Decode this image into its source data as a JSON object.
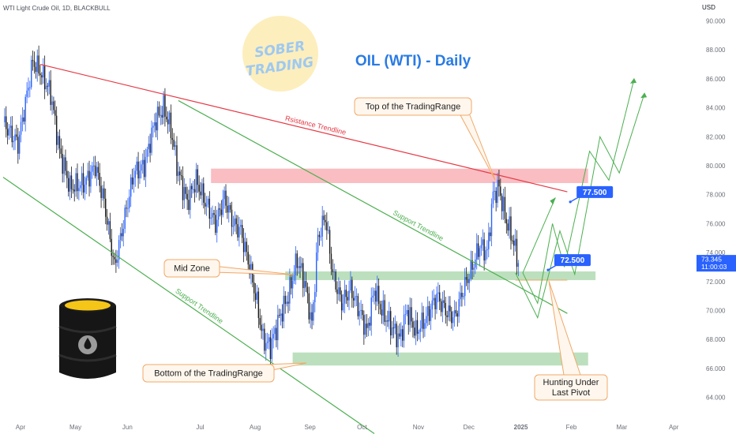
{
  "header": {
    "symbol": "WTI Light Crude Oil, 1D, BLACKBULL",
    "currency": "USD"
  },
  "logo": {
    "line1": "SOBER",
    "line2": "TRADING"
  },
  "colors": {
    "up": "#2962ff",
    "down": "#1a1a1a",
    "resistance": "#e53945",
    "support": "#4caf50",
    "zone_red": "#f7a7ad",
    "zone_green": "#a5d6a7",
    "title": "#2a7be4",
    "callout_border": "#f0a868",
    "label_blue": "#2962ff"
  },
  "chart_data": {
    "type": "candlestick",
    "title": "OIL (WTI) - Daily",
    "x_axis_labels": [
      "Apr",
      "May",
      "Jun",
      "Jul",
      "Aug",
      "Sep",
      "Oct",
      "Nov",
      "Dec",
      "2025",
      "Feb",
      "Mar",
      "Apr"
    ],
    "y_ticks": [
      "90.000",
      "88.000",
      "86.000",
      "84.000",
      "82.000",
      "80.000",
      "78.000",
      "76.000",
      "74.000",
      "72.000",
      "70.000",
      "68.000",
      "66.000",
      "64.000"
    ],
    "ylim": [
      63,
      91
    ],
    "grid": false,
    "last_price": "73.345",
    "countdown": "11:00:03",
    "anchor_points": [
      {
        "t": 0,
        "p": 83.0
      },
      {
        "t": 10,
        "p": 81.5
      },
      {
        "t": 20,
        "p": 87.2
      },
      {
        "t": 25,
        "p": 86.5
      },
      {
        "t": 32,
        "p": 85.0
      },
      {
        "t": 38,
        "p": 81.0
      },
      {
        "t": 45,
        "p": 78.5
      },
      {
        "t": 55,
        "p": 78.8
      },
      {
        "t": 62,
        "p": 80.0
      },
      {
        "t": 68,
        "p": 77.5
      },
      {
        "t": 75,
        "p": 73.0
      },
      {
        "t": 82,
        "p": 76.5
      },
      {
        "t": 88,
        "p": 79.5
      },
      {
        "t": 95,
        "p": 80.0
      },
      {
        "t": 102,
        "p": 83.0
      },
      {
        "t": 108,
        "p": 84.0
      },
      {
        "t": 113,
        "p": 82.5
      },
      {
        "t": 118,
        "p": 79.5
      },
      {
        "t": 124,
        "p": 77.5
      },
      {
        "t": 130,
        "p": 79.0
      },
      {
        "t": 136,
        "p": 77.5
      },
      {
        "t": 143,
        "p": 76.0
      },
      {
        "t": 149,
        "p": 77.8
      },
      {
        "t": 155,
        "p": 76.0
      },
      {
        "t": 160,
        "p": 75.5
      },
      {
        "t": 166,
        "p": 73.0
      },
      {
        "t": 171,
        "p": 70.5
      },
      {
        "t": 175,
        "p": 68.0
      },
      {
        "t": 180,
        "p": 67.5
      },
      {
        "t": 186,
        "p": 69.5
      },
      {
        "t": 192,
        "p": 71.0
      },
      {
        "t": 198,
        "p": 73.5
      },
      {
        "t": 203,
        "p": 72.0
      },
      {
        "t": 208,
        "p": 69.0
      },
      {
        "t": 212,
        "p": 75.0
      },
      {
        "t": 217,
        "p": 76.5
      },
      {
        "t": 222,
        "p": 72.5
      },
      {
        "t": 228,
        "p": 70.5
      },
      {
        "t": 234,
        "p": 71.5
      },
      {
        "t": 240,
        "p": 70.0
      },
      {
        "t": 245,
        "p": 68.5
      },
      {
        "t": 250,
        "p": 71.5
      },
      {
        "t": 255,
        "p": 70.0
      },
      {
        "t": 261,
        "p": 69.0
      },
      {
        "t": 267,
        "p": 68.0
      },
      {
        "t": 272,
        "p": 70.0
      },
      {
        "t": 278,
        "p": 68.5
      },
      {
        "t": 285,
        "p": 69.5
      },
      {
        "t": 292,
        "p": 71.0
      },
      {
        "t": 298,
        "p": 70.0
      },
      {
        "t": 304,
        "p": 69.5
      },
      {
        "t": 310,
        "p": 71.5
      },
      {
        "t": 316,
        "p": 73.0
      },
      {
        "t": 321,
        "p": 74.5
      },
      {
        "t": 326,
        "p": 74.0
      },
      {
        "t": 330,
        "p": 78.0
      },
      {
        "t": 334,
        "p": 78.5
      },
      {
        "t": 338,
        "p": 76.5
      },
      {
        "t": 343,
        "p": 75.0
      },
      {
        "t": 347,
        "p": 73.3
      }
    ],
    "lines": [
      {
        "name": "resistance",
        "label": "Rsistance Trendline",
        "from": [
          25,
          87.0
        ],
        "to": [
          380,
          78.2
        ]
      },
      {
        "name": "support-upper",
        "label": "Support Trendline",
        "from": [
          118,
          84.5
        ],
        "to": [
          380,
          69.8
        ]
      },
      {
        "name": "support-lower",
        "label": "Support Trendline",
        "from": [
          0,
          79.2
        ],
        "to": [
          250,
          61.5
        ]
      }
    ],
    "zones": [
      {
        "name": "top-zone",
        "from_t": 140,
        "to_t": 394,
        "from_p": 78.8,
        "to_p": 79.8
      },
      {
        "name": "mid-zone",
        "from_t": 190,
        "to_t": 399,
        "from_p": 72.1,
        "to_p": 72.7
      },
      {
        "name": "bottom-zone",
        "from_t": 195,
        "to_t": 394,
        "from_p": 66.2,
        "to_p": 67.1
      }
    ],
    "projections": [
      {
        "points": [
          [
            350,
            72.6
          ],
          [
            372,
            77.8
          ]
        ]
      },
      {
        "points": [
          [
            350,
            72.6
          ],
          [
            360,
            70.5
          ],
          [
            370,
            76.0
          ],
          [
            378,
            73.0
          ],
          [
            395,
            81.0
          ],
          [
            408,
            79.0
          ],
          [
            425,
            86.0
          ]
        ]
      },
      {
        "points": [
          [
            345,
            72.6
          ],
          [
            360,
            69.5
          ],
          [
            375,
            75.5
          ],
          [
            385,
            72.5
          ],
          [
            402,
            82.0
          ],
          [
            415,
            79.5
          ],
          [
            432,
            85.0
          ]
        ]
      }
    ],
    "targets": [
      {
        "label": "77.500",
        "t": 382,
        "p": 77.5
      },
      {
        "label": "72.500",
        "t": 367,
        "p": 72.8
      }
    ],
    "annotations": [
      {
        "name": "top-of-range",
        "text": "Top of the TradingRange"
      },
      {
        "name": "mid-zone",
        "text": "Mid Zone"
      },
      {
        "name": "bottom-of-range",
        "text": "Bottom of the TradingRange"
      },
      {
        "name": "hunting",
        "text": "Hunting Under\nLast Pivot"
      }
    ]
  }
}
